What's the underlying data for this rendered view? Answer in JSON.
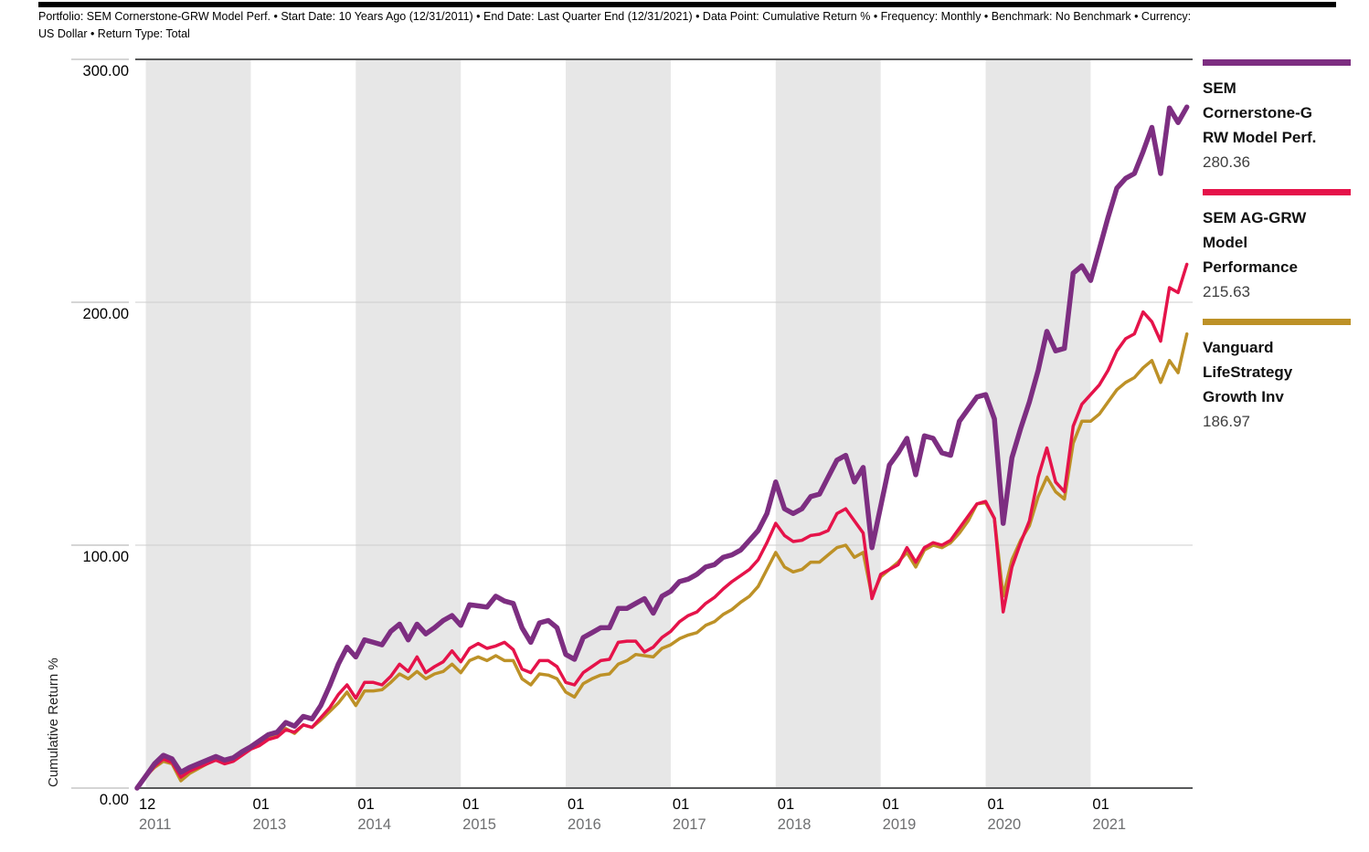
{
  "header": {
    "line1": "Portfolio: SEM Cornerstone-GRW Model Perf. • Start Date: 10 Years Ago (12/31/2011) • End Date: Last Quarter End (12/31/2021) • Data Point: Cumulative Return % • Frequency: Monthly • Benchmark: No Benchmark • Currency:",
    "line2": "US Dollar • Return Type: Total"
  },
  "legend": [
    {
      "label": "SEM\nCornerstone-G\nRW Model Perf.",
      "value": "280.36"
    },
    {
      "label": "SEM AG-GRW\nModel\nPerformance",
      "value": "215.63"
    },
    {
      "label": "Vanguard\nLifeStrategy\nGrowth Inv",
      "value": "186.97"
    }
  ],
  "colors": {
    "band": "#E7E7E7",
    "grid": "#CCCCCC",
    "axis_border": "#58595A",
    "y_tick": "#ABABAB",
    "month_label": "#000000",
    "year_label": "#6E6F71"
  },
  "chart_data": {
    "type": "line",
    "title": "",
    "xlabel": "",
    "ylabel": "Cumulative Return %",
    "ylim": [
      0,
      300
    ],
    "grid": "horizontal-only",
    "legend_position": "right",
    "frequency": "Monthly",
    "x_range": [
      "2011-12",
      "2021-12"
    ],
    "y_ticks": [
      {
        "label": "0.00",
        "value": 0
      },
      {
        "label": "100.00",
        "value": 100
      },
      {
        "label": "200.00",
        "value": 200
      },
      {
        "label": "300.00",
        "value": 300
      }
    ],
    "x_ticks": [
      {
        "month": "12",
        "year": "2011",
        "idx": 0
      },
      {
        "month": "01",
        "year": "2013",
        "idx": 13
      },
      {
        "month": "01",
        "year": "2014",
        "idx": 25
      },
      {
        "month": "01",
        "year": "2015",
        "idx": 37
      },
      {
        "month": "01",
        "year": "2016",
        "idx": 49
      },
      {
        "month": "01",
        "year": "2017",
        "idx": 61
      },
      {
        "month": "01",
        "year": "2018",
        "idx": 73
      },
      {
        "month": "01",
        "year": "2019",
        "idx": 85
      },
      {
        "month": "01",
        "year": "2020",
        "idx": 97
      },
      {
        "month": "01",
        "year": "2021",
        "idx": 109
      }
    ],
    "shaded_year_spans": [
      [
        1,
        13
      ],
      [
        25,
        37
      ],
      [
        49,
        61
      ],
      [
        73,
        85
      ],
      [
        97,
        109
      ]
    ],
    "series": [
      {
        "name": "SEM Cornerstone-GRW Model Perf.",
        "color": "#7D2E81",
        "stroke_width": 5.5,
        "end_value": 280.36,
        "values": [
          0,
          5,
          10,
          13.5,
          12,
          6.5,
          8.5,
          10,
          11.5,
          13,
          11.5,
          12.5,
          15,
          17,
          19.5,
          22,
          23,
          27,
          25.5,
          29.5,
          28.5,
          34,
          42,
          51,
          58,
          54,
          61,
          60,
          59,
          64.5,
          67.5,
          61,
          67.5,
          63.5,
          66,
          69,
          71,
          67,
          75.5,
          75,
          74.5,
          79,
          77,
          76,
          66,
          60,
          68,
          69,
          66,
          55,
          53,
          62,
          64,
          66,
          66,
          74,
          74,
          76,
          78,
          72,
          79,
          81,
          85,
          86,
          88,
          91,
          92,
          95,
          96,
          98,
          102,
          106,
          113,
          126,
          115,
          113,
          115,
          120,
          121,
          128,
          135,
          137,
          126,
          132,
          99,
          116,
          133,
          138,
          144,
          129,
          145,
          144,
          138,
          137,
          151,
          156,
          161,
          162,
          152,
          109,
          136,
          148,
          159,
          172,
          188,
          180,
          181,
          212,
          215,
          209,
          222,
          235,
          247,
          251,
          253,
          262,
          272,
          253,
          280,
          274,
          280.36
        ]
      },
      {
        "name": "SEM AG-GRW Model Performance",
        "color": "#E5134A",
        "stroke_width": 3.5,
        "end_value": 215.63,
        "values": [
          0,
          4.5,
          9,
          12,
          10.5,
          4.5,
          7,
          8.5,
          10,
          11.5,
          10,
          11,
          13.5,
          16,
          17.5,
          20,
          21,
          24,
          23,
          26,
          25,
          29,
          33,
          38.5,
          42.5,
          37,
          43.5,
          43.5,
          42.5,
          46,
          51,
          48,
          54,
          47.5,
          50,
          52,
          56.5,
          52,
          57.5,
          59.5,
          57.5,
          58.5,
          60,
          57,
          49,
          47.5,
          52.5,
          52.5,
          50,
          43.5,
          42.5,
          47.5,
          50,
          52.5,
          53,
          60,
          60.5,
          60.5,
          56,
          58,
          62,
          64.5,
          68.5,
          71,
          72.5,
          76,
          78.5,
          82,
          85,
          87.5,
          90,
          94,
          101,
          109,
          104,
          101.5,
          102,
          104,
          104.5,
          106,
          113,
          115,
          110,
          105,
          78,
          88,
          90,
          92,
          99,
          93,
          99,
          101,
          100,
          102,
          107,
          112,
          117,
          118,
          111,
          72.5,
          91,
          101,
          110,
          128,
          140,
          126,
          122,
          149,
          158,
          162,
          166,
          172,
          180,
          185,
          187,
          196,
          192,
          184,
          206,
          204,
          215.63
        ]
      },
      {
        "name": "Vanguard LifeStrategy Growth Inv",
        "color": "#BD9127",
        "stroke_width": 3.5,
        "end_value": 186.97,
        "values": [
          0,
          5,
          8.5,
          11,
          10,
          3,
          6,
          8,
          10,
          12,
          10.5,
          12,
          14.5,
          16.5,
          18,
          20.5,
          22,
          24.5,
          22.5,
          26,
          25,
          28,
          31.5,
          35,
          39.5,
          34,
          40,
          40,
          40.5,
          43.5,
          47,
          45,
          48,
          45,
          47,
          48,
          51,
          47.5,
          52.5,
          54,
          52.5,
          54.5,
          52.5,
          52.5,
          45,
          42.5,
          47,
          46.5,
          45,
          39.5,
          37.5,
          43,
          45,
          46.5,
          47,
          51,
          52.5,
          55,
          54.5,
          54,
          57.5,
          59,
          61.5,
          63,
          64,
          67,
          68.5,
          71.5,
          73.5,
          76.5,
          79,
          83,
          90,
          97,
          91,
          89,
          90,
          93,
          93,
          96,
          99,
          100,
          95,
          97,
          79,
          87,
          90,
          93,
          97,
          91,
          98,
          100,
          99,
          101,
          105,
          110,
          117,
          117.5,
          111,
          79,
          94,
          102,
          108,
          120,
          128,
          122,
          119,
          142,
          151,
          151,
          154,
          159,
          164,
          167,
          169,
          173,
          176,
          167,
          176,
          171,
          186.97
        ]
      }
    ]
  }
}
